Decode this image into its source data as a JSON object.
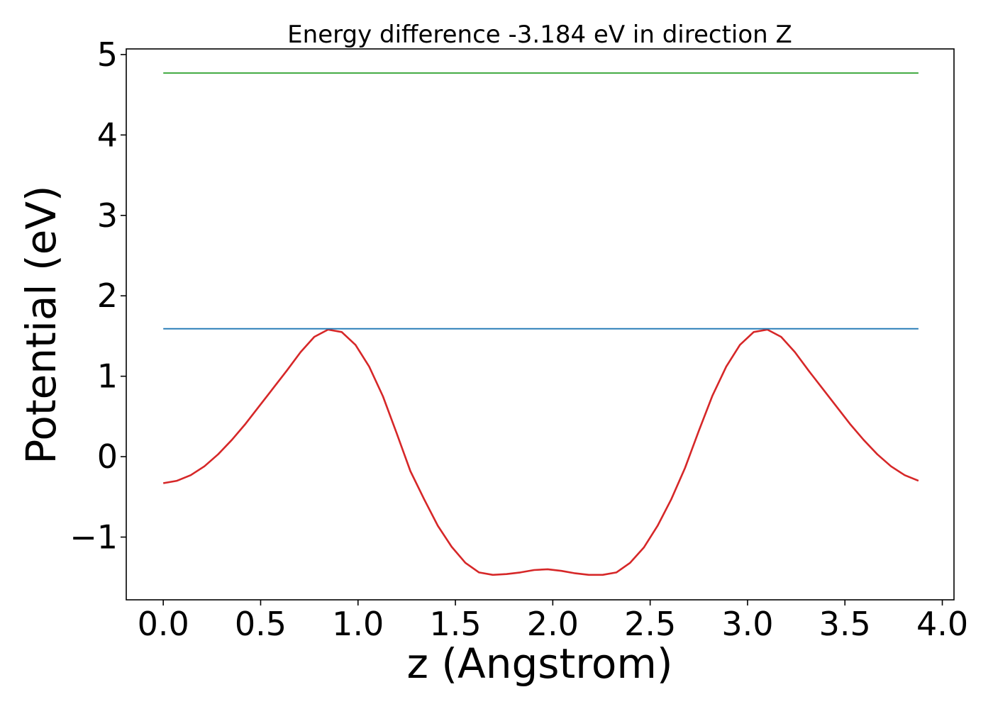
{
  "chart_data": {
    "type": "line",
    "title": "Energy difference -3.184 eV in direction Z",
    "xlabel": "z (Angstrom)",
    "ylabel": "Potential (eV)",
    "xlim": [
      -0.19,
      4.06
    ],
    "ylim": [
      -1.78,
      5.07
    ],
    "x_ticks": [
      0.0,
      0.5,
      1.0,
      1.5,
      2.0,
      2.5,
      3.0,
      3.5,
      4.0
    ],
    "x_tick_labels": [
      "0.0",
      "0.5",
      "1.0",
      "1.5",
      "2.0",
      "2.5",
      "3.0",
      "3.5",
      "4.0"
    ],
    "y_ticks": [
      -1,
      0,
      1,
      2,
      3,
      4,
      5
    ],
    "y_tick_labels": [
      "−1",
      "0",
      "1",
      "2",
      "3",
      "4",
      "5"
    ],
    "grid": false,
    "legend": "none",
    "series": [
      {
        "color": "#d62728",
        "x": [
          0.0,
          0.0705,
          0.141,
          0.2115,
          0.282,
          0.3525,
          0.423,
          0.4935,
          0.564,
          0.6345,
          0.705,
          0.7755,
          0.846,
          0.9165,
          0.987,
          1.0575,
          1.128,
          1.1985,
          1.269,
          1.3395,
          1.41,
          1.4805,
          1.551,
          1.6215,
          1.692,
          1.7625,
          1.833,
          1.9035,
          1.974,
          2.0445,
          2.115,
          2.1855,
          2.256,
          2.3265,
          2.397,
          2.4675,
          2.538,
          2.6085,
          2.679,
          2.7495,
          2.82,
          2.8905,
          2.961,
          3.0315,
          3.102,
          3.1725,
          3.243,
          3.3135,
          3.384,
          3.4545,
          3.525,
          3.5955,
          3.666,
          3.7365,
          3.807,
          3.8775
        ],
        "y": [
          -0.33,
          -0.3,
          -0.23,
          -0.12,
          0.03,
          0.21,
          0.41,
          0.63,
          0.85,
          1.07,
          1.3,
          1.49,
          1.58,
          1.55,
          1.39,
          1.12,
          0.75,
          0.29,
          -0.18,
          -0.53,
          -0.86,
          -1.12,
          -1.32,
          -1.44,
          -1.47,
          -1.46,
          -1.44,
          -1.41,
          -1.4,
          -1.42,
          -1.45,
          -1.47,
          -1.47,
          -1.44,
          -1.32,
          -1.13,
          -0.86,
          -0.53,
          -0.14,
          0.32,
          0.76,
          1.12,
          1.39,
          1.55,
          1.58,
          1.49,
          1.3,
          1.07,
          0.85,
          0.63,
          0.41,
          0.21,
          0.03,
          -0.12,
          -0.23,
          -0.3
        ]
      },
      {
        "color": "#1f77b4",
        "x": [
          0.0,
          3.8775
        ],
        "y": [
          1.59,
          1.59
        ]
      },
      {
        "color": "#2ca02c",
        "x": [
          0.0,
          3.8775
        ],
        "y": [
          4.77,
          4.77
        ]
      }
    ]
  }
}
